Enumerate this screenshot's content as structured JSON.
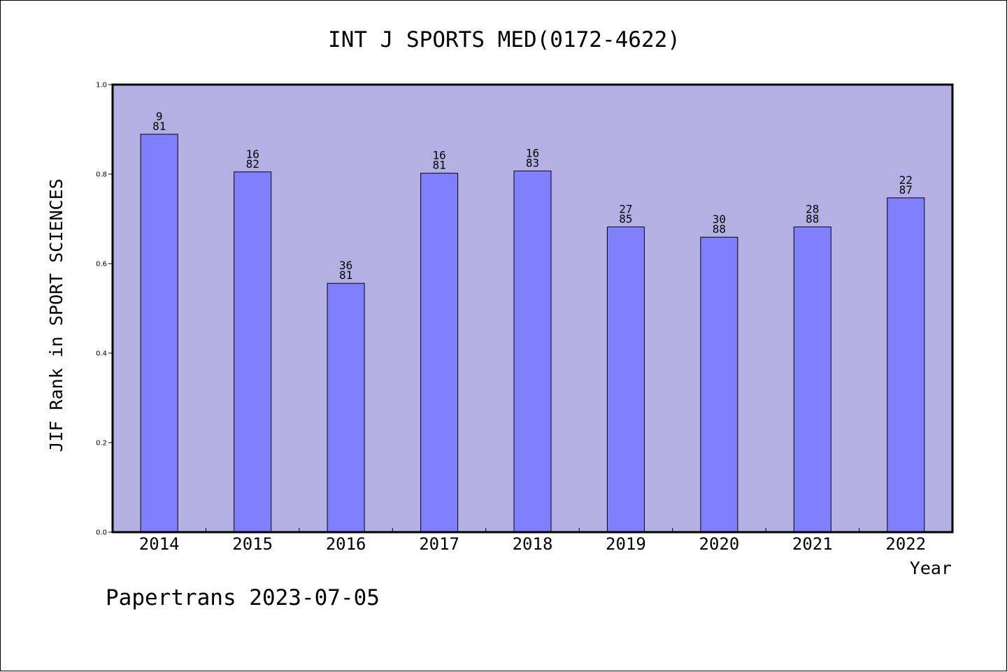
{
  "colors": {
    "plot_background": "#b5b0e3",
    "bar_fill": "#8080ff",
    "bar_stroke": "#000000",
    "frame": "#000000"
  },
  "footer": {
    "text": "Papertrans 2023-07-05"
  },
  "chart_data": {
    "type": "bar",
    "title": "INT J SPORTS MED(0172-4622)",
    "xlabel": "Year",
    "ylabel": "JIF Rank in SPORT SCIENCES",
    "ylim": [
      0,
      1.0
    ],
    "yticks": [
      "0.0",
      "0.2",
      "0.4",
      "0.6",
      "0.8",
      "1.0"
    ],
    "grid": false,
    "categories": [
      "2014",
      "2015",
      "2016",
      "2017",
      "2018",
      "2019",
      "2020",
      "2021",
      "2022"
    ],
    "values": [
      0.889,
      0.805,
      0.556,
      0.802,
      0.807,
      0.682,
      0.659,
      0.682,
      0.747
    ],
    "labels": [
      {
        "rank": "9",
        "total": "81"
      },
      {
        "rank": "16",
        "total": "82"
      },
      {
        "rank": "36",
        "total": "81"
      },
      {
        "rank": "16",
        "total": "81"
      },
      {
        "rank": "16",
        "total": "83"
      },
      {
        "rank": "27",
        "total": "85"
      },
      {
        "rank": "30",
        "total": "88"
      },
      {
        "rank": "28",
        "total": "88"
      },
      {
        "rank": "22",
        "total": "87"
      }
    ]
  }
}
